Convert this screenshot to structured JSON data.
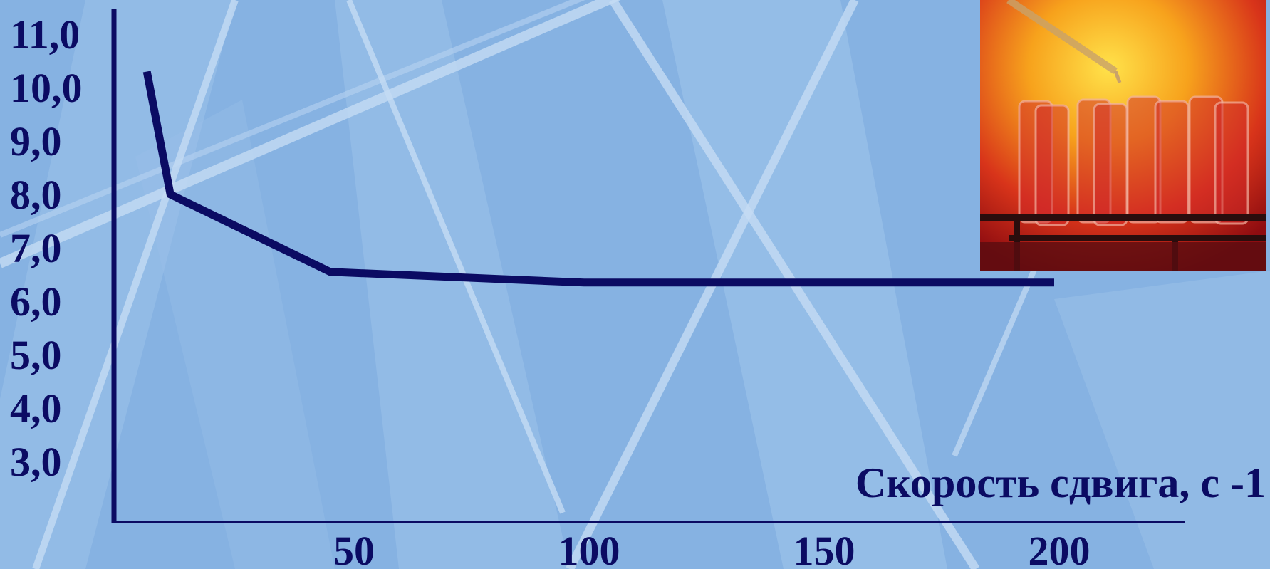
{
  "chart_data": {
    "type": "line",
    "title": "",
    "xlabel": "Скорость сдвига, с -1",
    "ylabel": "",
    "xlim": [
      0,
      240
    ],
    "ylim": [
      2,
      11.5
    ],
    "x_ticks": [
      50,
      100,
      150,
      200
    ],
    "x_tick_labels": [
      "50",
      "100",
      "150",
      "200"
    ],
    "y_ticks": [
      3,
      4,
      5,
      6,
      7,
      8,
      9,
      10,
      11
    ],
    "y_tick_labels": [
      "3,0",
      "4,0",
      "5,0",
      "6,0",
      "7,0",
      "8,0",
      "9,0",
      "10,0",
      "11,0"
    ],
    "grid": false,
    "series": [
      {
        "x": [
          7,
          12,
          46,
          100,
          200
        ],
        "y": [
          10.3,
          8.0,
          6.55,
          6.35,
          6.35
        ]
      }
    ]
  },
  "colors": {
    "background": "#86b2e2",
    "ink": "#0b0b63",
    "stripe": "#c5dcf4"
  },
  "photo": {
    "icon": "test-tubes-photo"
  }
}
